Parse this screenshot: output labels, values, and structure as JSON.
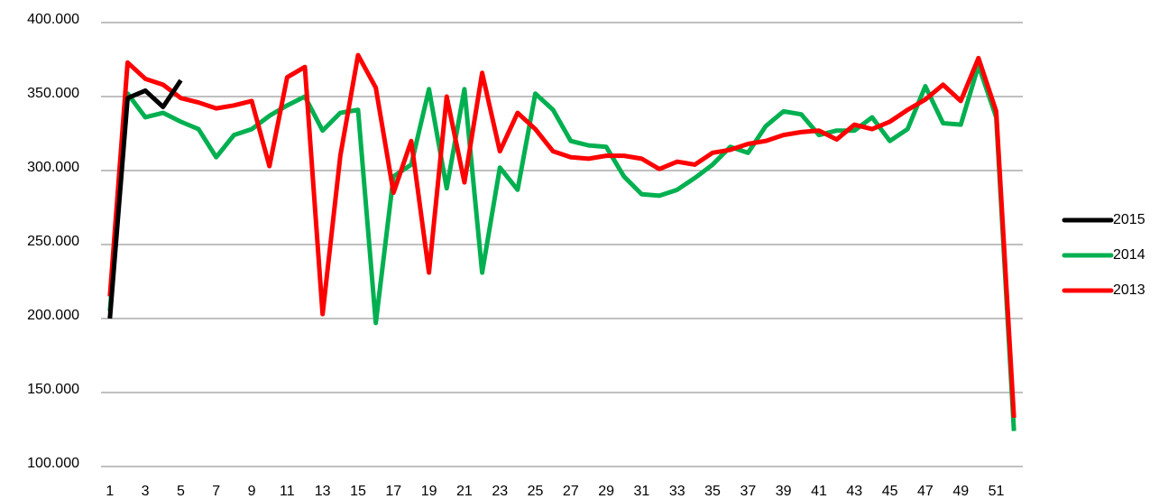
{
  "chart_data": {
    "type": "line",
    "categories": [
      1,
      null,
      3,
      null,
      5,
      null,
      7,
      null,
      9,
      null,
      11,
      null,
      13,
      null,
      15,
      null,
      17,
      null,
      19,
      null,
      21,
      null,
      23,
      null,
      25,
      null,
      27,
      null,
      29,
      null,
      31,
      null,
      33,
      null,
      35,
      null,
      37,
      null,
      39,
      null,
      41,
      null,
      43,
      null,
      45,
      null,
      47,
      null,
      49,
      null,
      51,
      null
    ],
    "series": [
      {
        "name": "2015",
        "color": "#000000",
        "values": [
          200000,
          349000,
          354000,
          343000,
          361000,
          null,
          null,
          null,
          null,
          null,
          null,
          null,
          null,
          null,
          null,
          null,
          null,
          null,
          null,
          null,
          null,
          null,
          null,
          null,
          null,
          null,
          null,
          null,
          null,
          null,
          null,
          null,
          null,
          null,
          null,
          null,
          null,
          null,
          null,
          null,
          null,
          null,
          null,
          null,
          null,
          null,
          null,
          null,
          null,
          null,
          null,
          null
        ]
      },
      {
        "name": "2014",
        "color": "#00b050",
        "values": [
          205000,
          352000,
          336000,
          339000,
          333000,
          328000,
          309000,
          324000,
          328000,
          337000,
          344000,
          350000,
          327000,
          339000,
          341000,
          197000,
          296000,
          304000,
          355000,
          288000,
          355000,
          231000,
          302000,
          287000,
          352000,
          341000,
          320000,
          317000,
          316000,
          296000,
          284000,
          283000,
          287000,
          295000,
          304000,
          316000,
          312000,
          330000,
          340000,
          338000,
          324000,
          327000,
          327000,
          336000,
          320000,
          328000,
          357000,
          332000,
          331000,
          371000,
          336000,
          124000
        ]
      },
      {
        "name": "2013",
        "color": "#ff0000",
        "values": [
          215000,
          373000,
          362000,
          358000,
          349000,
          346000,
          342000,
          344000,
          347000,
          303000,
          363000,
          370000,
          203000,
          310000,
          378000,
          356000,
          285000,
          320000,
          231000,
          350000,
          292000,
          366000,
          313000,
          339000,
          328000,
          313000,
          309000,
          308000,
          310000,
          310000,
          308000,
          301000,
          306000,
          304000,
          312000,
          314000,
          318000,
          320000,
          324000,
          326000,
          327000,
          321000,
          331000,
          328000,
          333000,
          341000,
          348000,
          358000,
          347000,
          376000,
          340000,
          133000
        ]
      }
    ],
    "ylim": [
      100000,
      400000
    ],
    "yticks": [
      {
        "value": 100000,
        "label": "100.000"
      },
      {
        "value": 150000,
        "label": "150.000"
      },
      {
        "value": 200000,
        "label": "200.000"
      },
      {
        "value": 250000,
        "label": "250.000"
      },
      {
        "value": 300000,
        "label": "300.000"
      },
      {
        "value": 350000,
        "label": "350.000"
      },
      {
        "value": 400000,
        "label": "400.000"
      }
    ],
    "grid": true,
    "legend": "right"
  }
}
